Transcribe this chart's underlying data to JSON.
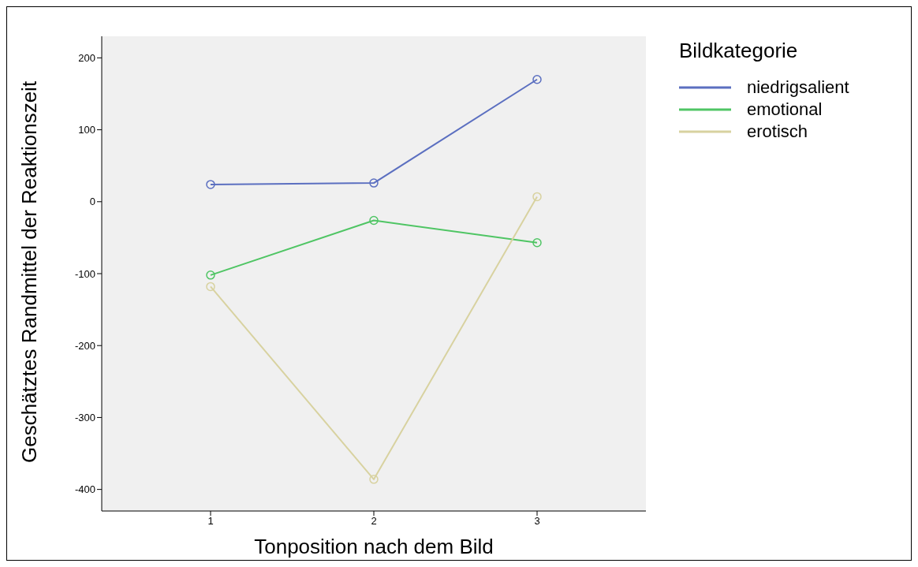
{
  "chart_data": {
    "type": "line",
    "xlabel": "Tonposition nach dem Bild",
    "ylabel": "Geschätztes Randmittel der Reaktionszeit",
    "legend_title": "Bildkategorie",
    "categories": [
      "1",
      "2",
      "3"
    ],
    "series": [
      {
        "name": "niedrigsalient",
        "color": "#5b6fc0",
        "values": [
          24,
          26,
          170
        ]
      },
      {
        "name": "emotional",
        "color": "#4fc564",
        "values": [
          -102,
          -26,
          -57
        ]
      },
      {
        "name": "erotisch",
        "color": "#d8d2a0",
        "values": [
          -118,
          -386,
          7
        ]
      }
    ],
    "ylim": [
      -430,
      230
    ],
    "yticks": [
      -400,
      -300,
      -200,
      -100,
      0,
      100,
      200
    ],
    "grid": false,
    "legend": "top right",
    "marker": "circle",
    "line_style": "solid"
  }
}
